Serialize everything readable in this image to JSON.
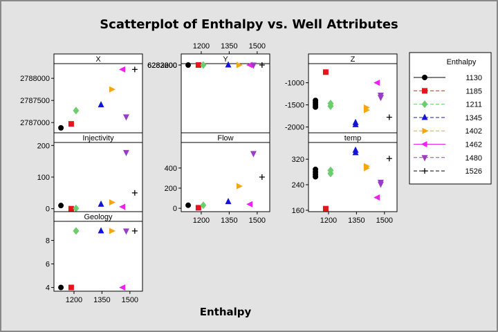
{
  "chart_data": {
    "type": "scatter",
    "title": "Scatterplot of Enthalpy vs. Well Attributes",
    "xlabel": "Enthalpy",
    "legend": {
      "title": "Enthalpy",
      "placement": "right"
    },
    "groups": [
      {
        "name": "1130",
        "color": "#000000",
        "symbol": "circle"
      },
      {
        "name": "1185",
        "color": "#e8141c",
        "symbol": "square"
      },
      {
        "name": "1211",
        "color": "#6ccd6c",
        "symbol": "diamond"
      },
      {
        "name": "1345",
        "color": "#1414d8",
        "symbol": "triangle-up"
      },
      {
        "name": "1402",
        "color": "#f5a50f",
        "symbol": "triangle-right"
      },
      {
        "name": "1462",
        "color": "#ee22ee",
        "symbol": "triangle-left"
      },
      {
        "name": "1480",
        "color": "#9a3cc8",
        "symbol": "triangle-down"
      },
      {
        "name": "1526",
        "color": "#000000",
        "symbol": "plus"
      }
    ],
    "x_ticks": [
      "1200",
      "1350",
      "1500"
    ],
    "x_range": [
      1100,
      1560
    ],
    "panels": [
      {
        "name": "X",
        "ylim": [
          2786800,
          2788300
        ],
        "yticks": [
          {
            "v": 2787000,
            "label": "2787000"
          },
          {
            "v": 2787500,
            "label": "2787500"
          },
          {
            "v": 2788000,
            "label": "2788000"
          }
        ],
        "points": [
          [
            1130,
            2786880
          ],
          [
            1185,
            2786970
          ],
          [
            1211,
            2787270
          ],
          [
            1345,
            2787400
          ],
          [
            1402,
            2787750
          ],
          [
            1462,
            2788200
          ],
          [
            1480,
            2787130
          ],
          [
            1526,
            2788200
          ]
        ]
      },
      {
        "name": "Y",
        "ylim": [
          2828450,
          6283550
        ],
        "yticks": [
          {
            "v": 6282000,
            "label": "6282000"
          },
          {
            "v": 6282600,
            "label": "6282600"
          },
          {
            "v": 6283200,
            "label": "6283200"
          }
        ],
        "points": [
          [
            1130,
            6282220
          ],
          [
            1185,
            6282710
          ],
          [
            1211,
            6282790
          ],
          [
            1345,
            6282870
          ],
          [
            1402,
            6283480
          ],
          [
            1462,
            6283350
          ],
          [
            1480,
            6282520
          ],
          [
            1526,
            6283350
          ]
        ]
      },
      {
        "name": "Z",
        "ylim": [
          -2100,
          -600
        ],
        "yticks": [
          {
            "v": -2000,
            "label": "-2000"
          },
          {
            "v": -1500,
            "label": "-1500"
          },
          {
            "v": -1000,
            "label": "-1000"
          }
        ],
        "points": [
          [
            1130,
            -1400
          ],
          [
            1130,
            -1450
          ],
          [
            1130,
            -1500
          ],
          [
            1130,
            -1550
          ],
          [
            1185,
            -760
          ],
          [
            1211,
            -1470
          ],
          [
            1211,
            -1530
          ],
          [
            1345,
            -1900
          ],
          [
            1345,
            -1950
          ],
          [
            1402,
            -1560
          ],
          [
            1402,
            -1620
          ],
          [
            1462,
            -1000
          ],
          [
            1480,
            -1280
          ],
          [
            1480,
            -1330
          ],
          [
            1526,
            -1780
          ]
        ]
      },
      {
        "name": "Injectivity",
        "ylim": [
          -5,
          205
        ],
        "yticks": [
          {
            "v": 0,
            "label": "0"
          },
          {
            "v": 100,
            "label": "100"
          },
          {
            "v": 200,
            "label": "200"
          }
        ],
        "points": [
          [
            1130,
            10
          ],
          [
            1185,
            0
          ],
          [
            1211,
            1
          ],
          [
            1345,
            14
          ],
          [
            1402,
            20
          ],
          [
            1462,
            6
          ],
          [
            1480,
            178
          ],
          [
            1526,
            50
          ]
        ]
      },
      {
        "name": "Flow",
        "ylim": [
          -20,
          640
        ],
        "yticks": [
          {
            "v": 0,
            "label": "0"
          },
          {
            "v": 200,
            "label": "200"
          },
          {
            "v": 400,
            "label": "400"
          }
        ],
        "points": [
          [
            1130,
            30
          ],
          [
            1185,
            5
          ],
          [
            1211,
            30
          ],
          [
            1345,
            65
          ],
          [
            1402,
            220
          ],
          [
            1462,
            40
          ],
          [
            1480,
            545
          ],
          [
            1526,
            310
          ]
        ]
      },
      {
        "name": "temp",
        "ylim": [
          160,
          368
        ],
        "yticks": [
          {
            "v": 160,
            "label": "160"
          },
          {
            "v": 240,
            "label": "240"
          },
          {
            "v": 320,
            "label": "320"
          }
        ],
        "points": [
          [
            1130,
            265
          ],
          [
            1130,
            272
          ],
          [
            1130,
            280
          ],
          [
            1130,
            288
          ],
          [
            1185,
            165
          ],
          [
            1211,
            275
          ],
          [
            1211,
            285
          ],
          [
            1345,
            340
          ],
          [
            1345,
            348
          ],
          [
            1402,
            292
          ],
          [
            1402,
            298
          ],
          [
            1462,
            200
          ],
          [
            1480,
            242
          ],
          [
            1480,
            248
          ],
          [
            1526,
            322
          ]
        ]
      },
      {
        "name": "Geology",
        "ylim": [
          3.8,
          9.5
        ],
        "yticks": [
          {
            "v": 4,
            "label": "4"
          },
          {
            "v": 6,
            "label": "6"
          },
          {
            "v": 8,
            "label": "8"
          }
        ],
        "points": [
          [
            1130,
            4
          ],
          [
            1185,
            4
          ],
          [
            1211,
            8.8
          ],
          [
            1345,
            8.8
          ],
          [
            1402,
            8.8
          ],
          [
            1462,
            4
          ],
          [
            1480,
            8.8
          ],
          [
            1526,
            8.8
          ]
        ]
      }
    ]
  }
}
